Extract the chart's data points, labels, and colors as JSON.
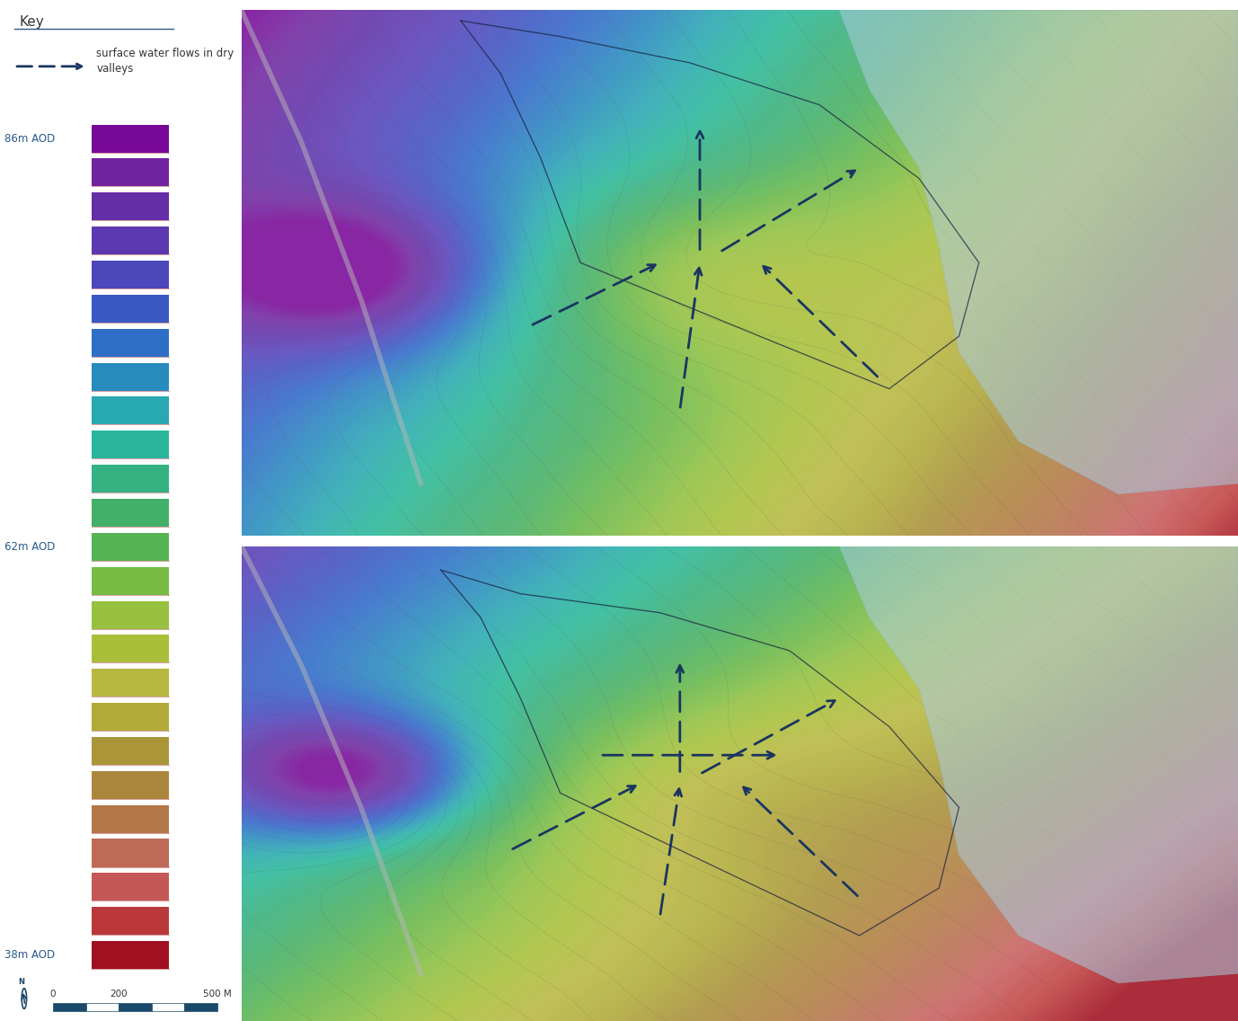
{
  "key_title": "Key",
  "arrow_label": "surface water flows in dry\nvalleys",
  "separator_color": "#d4a0a0",
  "scale_bar_color": "#1a4a6b",
  "north_circle_color": "#1a4a6b",
  "text_color": "#2a5a8a",
  "background_color": "#ffffff",
  "water_color": "#aacce0",
  "dpi": 100,
  "figsize": [
    13.78,
    11.36
  ],
  "elev_min": 38,
  "elev_max": 86,
  "n_swatches": 25,
  "label_indices": [
    0,
    12,
    24
  ],
  "label_texts": [
    "86m AOD",
    "62m AOD",
    "38m AOD"
  ],
  "elevation_colors": [
    "#a01020",
    "#c04040",
    "#c86060",
    "#b87050",
    "#b08040",
    "#a89038",
    "#b0a838",
    "#b8b840",
    "#a8c038",
    "#90c040",
    "#68b848",
    "#48b060",
    "#38b07a",
    "#28b898",
    "#28a8b0",
    "#2888c0",
    "#3068c8",
    "#4050c0",
    "#5840b8",
    "#6030a8",
    "#7028a0",
    "#780898"
  ]
}
